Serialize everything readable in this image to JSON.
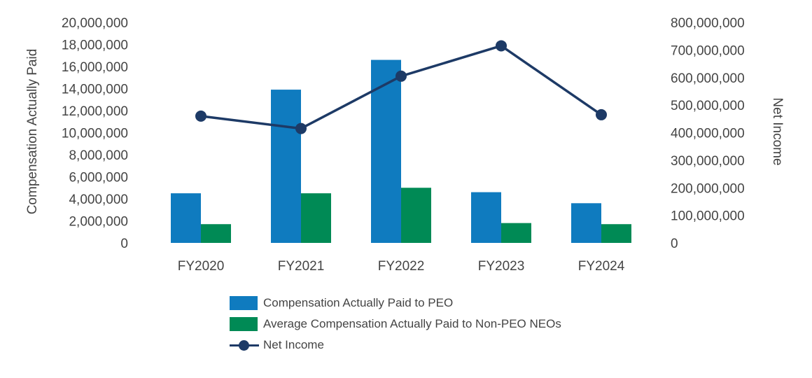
{
  "chart_data": {
    "type": "bar",
    "categories": [
      "FY2020",
      "FY2021",
      "FY2022",
      "FY2023",
      "FY2024"
    ],
    "series": [
      {
        "name": "Compensation Actually Paid to PEO",
        "type": "bar",
        "axis": "left",
        "color": "#0f7bbf",
        "values": [
          4500000,
          13900000,
          16600000,
          4600000,
          3600000
        ]
      },
      {
        "name": "Average Compensation Actually Paid to Non-PEO NEOs",
        "type": "bar",
        "axis": "left",
        "color": "#008a55",
        "values": [
          1700000,
          4500000,
          5000000,
          1800000,
          1700000
        ]
      },
      {
        "name": "Net Income",
        "type": "line",
        "axis": "right",
        "color": "#1d3a66",
        "values": [
          460000000,
          415000000,
          605000000,
          715000000,
          465000000
        ]
      }
    ],
    "ylabel": "Compensation Actually Paid",
    "y2label": "Net Income",
    "ylim": [
      0,
      20000000
    ],
    "y2lim": [
      0,
      800000000
    ],
    "yticks": [
      "0",
      "2,000,000",
      "4,000,000",
      "6,000,000",
      "8,000,000",
      "10,000,000",
      "12,000,000",
      "14,000,000",
      "16,000,000",
      "18,000,000",
      "20,000,000"
    ],
    "y2ticks": [
      "0",
      "100,000,000",
      "200,000,000",
      "300,000,000",
      "400,000,000",
      "500,000,000",
      "600,000,000",
      "700,000,000",
      "800,000,000"
    ],
    "grid": false,
    "legend_position": "bottom"
  }
}
